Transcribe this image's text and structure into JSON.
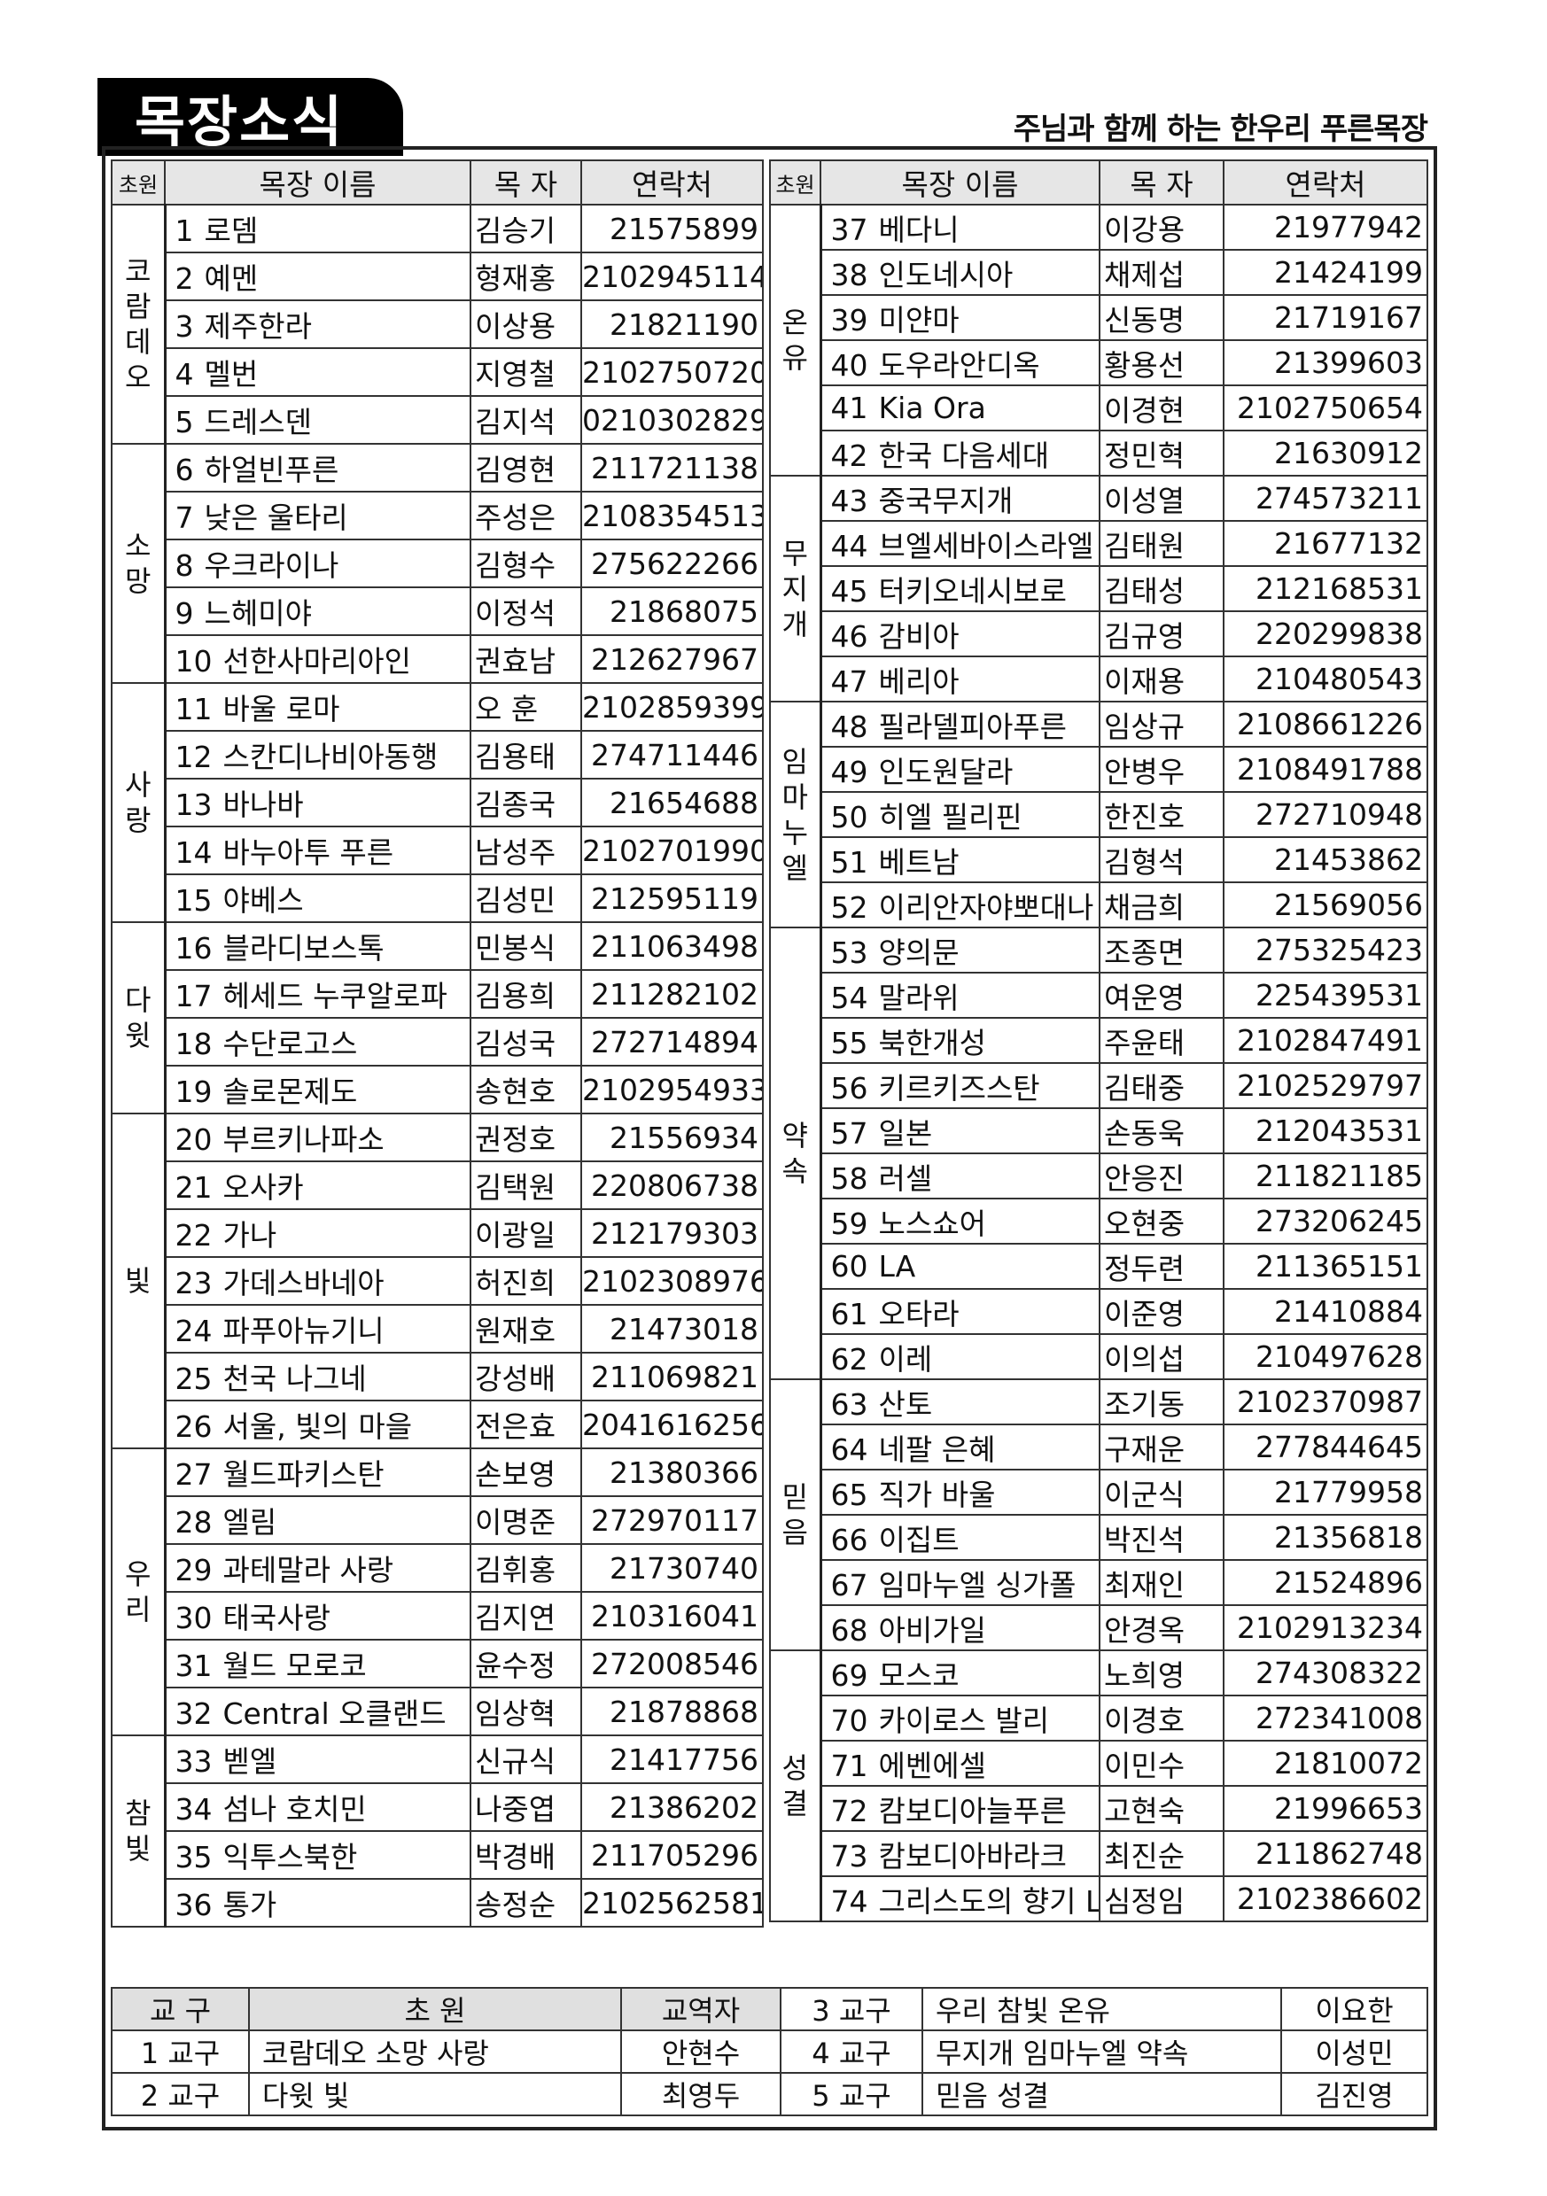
{
  "header": {
    "title": "목장소식",
    "subtitle": "주님과 함께 하는 한우리 푸른목장"
  },
  "columns": {
    "group": "초원",
    "name": "목장 이름",
    "pastor": "목 자",
    "contact": "연락처"
  },
  "left_groups": [
    {
      "group": "코람데오",
      "rows": [
        [
          "1",
          "로뎀",
          "김승기",
          "21575899"
        ],
        [
          "2",
          "예멘",
          "형재홍",
          "2102945114"
        ],
        [
          "3",
          "제주한라",
          "이상용",
          "21821190"
        ],
        [
          "4",
          "멜번",
          "지영철",
          "2102750720"
        ],
        [
          "5",
          "드레스덴",
          "김지석",
          "0210302829"
        ]
      ]
    },
    {
      "group": "소망",
      "rows": [
        [
          "6",
          "하얼빈푸른",
          "김영현",
          "211721138"
        ],
        [
          "7",
          "낮은 울타리",
          "주성은",
          "2108354513"
        ],
        [
          "8",
          "우크라이나",
          "김형수",
          "275622266"
        ],
        [
          "9",
          "느헤미야",
          "이정석",
          "21868075"
        ],
        [
          "10",
          "선한사마리아인",
          "권효남",
          "212627967"
        ]
      ]
    },
    {
      "group": "사랑",
      "rows": [
        [
          "11",
          "바울 로마",
          "오  훈",
          "2102859399"
        ],
        [
          "12",
          "스칸디나비아동행",
          "김용태",
          "274711446"
        ],
        [
          "13",
          "바나바",
          "김종국",
          "21654688"
        ],
        [
          "14",
          "바누아투 푸른",
          "남성주",
          "2102701990"
        ],
        [
          "15",
          "야베스",
          "김성민",
          "212595119"
        ]
      ]
    },
    {
      "group": "다윗",
      "rows": [
        [
          "16",
          "블라디보스톡",
          "민봉식",
          "211063498"
        ],
        [
          "17",
          "헤세드 누쿠알로파",
          "김용희",
          "211282102"
        ],
        [
          "18",
          "수단로고스",
          "김성국",
          "272714894"
        ],
        [
          "19",
          "솔로몬제도",
          "송현호",
          "2102954933"
        ]
      ]
    },
    {
      "group": "빛",
      "rows": [
        [
          "20",
          "부르키나파소",
          "권정호",
          "21556934"
        ],
        [
          "21",
          "오사카",
          "김택원",
          "220806738"
        ],
        [
          "22",
          "가나",
          "이광일",
          "212179303"
        ],
        [
          "23",
          "가데스바네아",
          "허진희",
          "2102308976"
        ],
        [
          "24",
          "파푸아뉴기니",
          "원재호",
          "21473018"
        ],
        [
          "25",
          "천국 나그네",
          "강성배",
          "211069821"
        ],
        [
          "26",
          "서울, 빛의 마을",
          "전은효",
          "2041616256"
        ]
      ]
    },
    {
      "group": "우리",
      "rows": [
        [
          "27",
          "월드파키스탄",
          "손보영",
          "21380366"
        ],
        [
          "28",
          "엘림",
          "이명준",
          "272970117"
        ],
        [
          "29",
          "과테말라 사랑",
          "김휘홍",
          "21730740"
        ],
        [
          "30",
          "태국사랑",
          "김지연",
          "210316041"
        ],
        [
          "31",
          "월드 모로코",
          "윤수정",
          "272008546"
        ],
        [
          "32",
          "Central 오클랜드",
          "임상혁",
          "21878868"
        ]
      ]
    },
    {
      "group": "참빛",
      "rows": [
        [
          "33",
          "벧엘",
          "신규식",
          "21417756"
        ],
        [
          "34",
          "섬나 호치민",
          "나중엽",
          "21386202"
        ],
        [
          "35",
          "익투스북한",
          "박경배",
          "211705296"
        ],
        [
          "36",
          "통가",
          "송정순",
          "2102562581"
        ]
      ]
    }
  ],
  "right_groups": [
    {
      "group": "온유",
      "rows": [
        [
          "37",
          "베다니",
          "이강용",
          "21977942"
        ],
        [
          "38",
          "인도네시아",
          "채제섭",
          "21424199"
        ],
        [
          "39",
          "미얀마",
          "신동명",
          "21719167"
        ],
        [
          "40",
          "도우라안디옥",
          "황용선",
          "21399603"
        ],
        [
          "41",
          "Kia Ora",
          "이경현",
          "2102750654"
        ],
        [
          "42",
          "한국 다음세대",
          "정민혁",
          "21630912"
        ]
      ]
    },
    {
      "group": "무지개",
      "rows": [
        [
          "43",
          "중국무지개",
          "이성열",
          "274573211"
        ],
        [
          "44",
          "브엘세바이스라엘",
          "김태원",
          "21677132"
        ],
        [
          "45",
          "터키오네시보로",
          "김태성",
          "212168531"
        ],
        [
          "46",
          "감비아",
          "김규영",
          "220299838"
        ],
        [
          "47",
          "베리아",
          "이재용",
          "210480543"
        ]
      ]
    },
    {
      "group": "임마누엘",
      "rows": [
        [
          "48",
          "필라델피아푸른",
          "임상규",
          "2108661226"
        ],
        [
          "49",
          "인도원달라",
          "안병우",
          "2108491788"
        ],
        [
          "50",
          "히엘 필리핀",
          "한진호",
          "272710948"
        ],
        [
          "51",
          "베트남",
          "김형석",
          "21453862"
        ],
        [
          "52",
          "이리안자야뽀대나",
          "채금희",
          "21569056"
        ]
      ]
    },
    {
      "group": "약속",
      "rows": [
        [
          "53",
          "양의문",
          "조종면",
          "275325423"
        ],
        [
          "54",
          "말라위",
          "여운영",
          "225439531"
        ],
        [
          "55",
          "북한개성",
          "주윤태",
          "2102847491"
        ],
        [
          "56",
          "키르키즈스탄",
          "김태중",
          "2102529797"
        ],
        [
          "57",
          "일본",
          "손동욱",
          "212043531"
        ],
        [
          "58",
          "러셀",
          "안응진",
          "211821185"
        ],
        [
          "59",
          "노스쇼어",
          "오현중",
          "273206245"
        ],
        [
          "60",
          "LA",
          "정두련",
          "211365151"
        ],
        [
          "61",
          "오타라",
          "이준영",
          "21410884"
        ],
        [
          "62",
          "이레",
          "이의섭",
          "210497628"
        ]
      ]
    },
    {
      "group": "믿음",
      "rows": [
        [
          "63",
          "산토",
          "조기동",
          "2102370987"
        ],
        [
          "64",
          "네팔 은혜",
          "구재운",
          "277844645"
        ],
        [
          "65",
          "직가 바울",
          "이군식",
          "21779958"
        ],
        [
          "66",
          "이집트",
          "박진석",
          "21356818"
        ],
        [
          "67",
          "임마누엘 싱가폴",
          "최재인",
          "21524896"
        ],
        [
          "68",
          "아비가일",
          "안경옥",
          "2102913234"
        ]
      ]
    },
    {
      "group": "성결",
      "rows": [
        [
          "69",
          "모스코",
          "노희영",
          "274308322"
        ],
        [
          "70",
          "카이로스 발리",
          "이경호",
          "272341008"
        ],
        [
          "71",
          "에벤에셀",
          "이민수",
          "21810072"
        ],
        [
          "72",
          "캄보디아늘푸른",
          "고현숙",
          "21996653"
        ],
        [
          "73",
          "캄보디아바라크",
          "최진순",
          "211862748"
        ],
        [
          "74",
          "그리스도의 향기 Lexall",
          "심정임",
          "2102386602"
        ]
      ]
    }
  ],
  "districts": {
    "headers": {
      "district": "교 구",
      "groups": "초 원",
      "leader": "교역자"
    },
    "rows": [
      {
        "district": "1 교구",
        "groups": "코람데오  소망  사랑",
        "leader": "안현수"
      },
      {
        "district": "2 교구",
        "groups": "다윗  빛",
        "leader": "최영두"
      },
      {
        "district": "3 교구",
        "groups": "우리  참빛  온유",
        "leader": "이요한"
      },
      {
        "district": "4 교구",
        "groups": "무지개  임마누엘  약속",
        "leader": "이성민"
      },
      {
        "district": "5 교구",
        "groups": "믿음  성결",
        "leader": "김진영"
      }
    ]
  }
}
